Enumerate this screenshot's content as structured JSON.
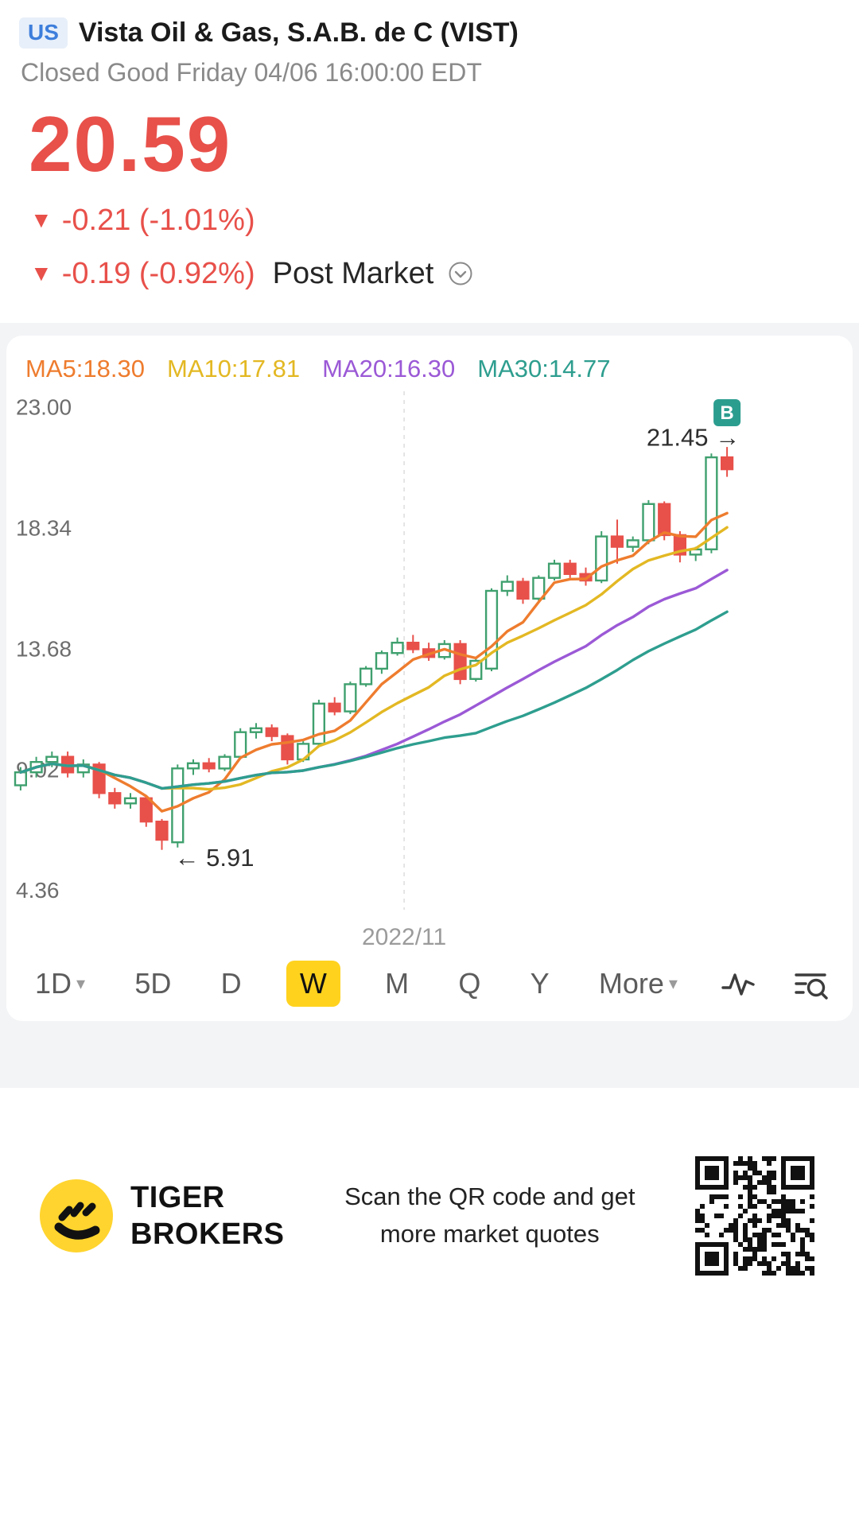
{
  "header": {
    "market_badge": "US",
    "title": "Vista Oil & Gas, S.A.B. de C (VIST)",
    "status": "Closed Good Friday 04/06 16:00:00 EDT",
    "price": "20.59",
    "price_color": "#e8504a",
    "change": {
      "arrow": "▼",
      "text": "-0.21 (-1.01%)"
    },
    "post_market": {
      "arrow": "▼",
      "text": "-0.19 (-0.92%)",
      "label": "Post Market"
    }
  },
  "chart": {
    "ma_labels": [
      {
        "text": "MA5:18.30",
        "color": "#ee7c2e"
      },
      {
        "text": "MA10:17.81",
        "color": "#e3b823"
      },
      {
        "text": "MA20:16.30",
        "color": "#9b59d6"
      },
      {
        "text": "MA30:14.77",
        "color": "#2e9e8f"
      }
    ],
    "periods": [
      {
        "label": "1D",
        "caret": true
      },
      {
        "label": "5D"
      },
      {
        "label": "D"
      },
      {
        "label": "W",
        "selected": true
      },
      {
        "label": "M"
      },
      {
        "label": "Q"
      },
      {
        "label": "Y"
      },
      {
        "label": "More",
        "caret": true
      }
    ],
    "selected_color": "#ffd21e"
  },
  "chart_data": {
    "type": "candlestick",
    "timeframe": "W",
    "ylim": [
      3.6,
      23.6
    ],
    "y_ticks": [
      "23.00",
      "18.34",
      "13.68",
      "9.02",
      "4.36"
    ],
    "x_axis_label": "2022/11",
    "x_axis_label_frac": 0.47,
    "up_color": "#3fa06e",
    "down_color": "#e8504a",
    "moving_averages": [
      {
        "name": "MA5",
        "period": 5,
        "value": 18.3,
        "color": "#ee7c2e"
      },
      {
        "name": "MA10",
        "period": 10,
        "value": 17.81,
        "color": "#e3b823"
      },
      {
        "name": "MA20",
        "period": 20,
        "value": 16.3,
        "color": "#9b59d6"
      },
      {
        "name": "MA30",
        "period": 30,
        "value": 14.77,
        "color": "#2e9e8f"
      }
    ],
    "annotations": [
      {
        "text": "5.91",
        "arrow": "left",
        "candle_index": 9,
        "price": 5.6
      },
      {
        "text": "21.45",
        "arrow": "right",
        "candle_index": 45,
        "price": 21.8
      }
    ],
    "buy_marker": {
      "label": "B",
      "color": "#2b9d8f"
    },
    "candles": [
      [
        8.4,
        9.1,
        8.2,
        8.9
      ],
      [
        8.9,
        9.5,
        8.7,
        9.3
      ],
      [
        9.3,
        9.7,
        9.1,
        9.5
      ],
      [
        9.5,
        9.7,
        8.7,
        8.9
      ],
      [
        8.9,
        9.4,
        8.7,
        9.2
      ],
      [
        9.2,
        9.3,
        7.9,
        8.1
      ],
      [
        8.1,
        8.3,
        7.5,
        7.7
      ],
      [
        7.7,
        8.1,
        7.5,
        7.9
      ],
      [
        7.9,
        8.0,
        6.8,
        7.0
      ],
      [
        7.0,
        7.1,
        5.91,
        6.3
      ],
      [
        6.2,
        9.2,
        6.0,
        9.05
      ],
      [
        9.05,
        9.4,
        8.8,
        9.25
      ],
      [
        9.25,
        9.45,
        8.9,
        9.05
      ],
      [
        9.05,
        9.6,
        8.95,
        9.5
      ],
      [
        9.5,
        10.6,
        9.4,
        10.45
      ],
      [
        10.45,
        10.8,
        10.2,
        10.6
      ],
      [
        10.6,
        10.75,
        10.1,
        10.3
      ],
      [
        10.3,
        10.4,
        9.2,
        9.4
      ],
      [
        9.4,
        10.1,
        9.3,
        10.0
      ],
      [
        10.0,
        11.7,
        9.9,
        11.55
      ],
      [
        11.55,
        11.8,
        11.1,
        11.25
      ],
      [
        11.25,
        12.4,
        11.15,
        12.3
      ],
      [
        12.3,
        13.0,
        12.2,
        12.9
      ],
      [
        12.9,
        13.6,
        12.7,
        13.5
      ],
      [
        13.5,
        14.1,
        13.4,
        13.9
      ],
      [
        13.9,
        14.2,
        13.5,
        13.65
      ],
      [
        13.65,
        13.9,
        13.2,
        13.35
      ],
      [
        13.35,
        14.0,
        13.25,
        13.85
      ],
      [
        13.85,
        14.0,
        12.3,
        12.5
      ],
      [
        12.5,
        13.3,
        12.4,
        13.2
      ],
      [
        12.9,
        16.0,
        12.8,
        15.9
      ],
      [
        15.9,
        16.5,
        15.7,
        16.25
      ],
      [
        16.25,
        16.4,
        15.4,
        15.6
      ],
      [
        15.6,
        16.5,
        15.5,
        16.4
      ],
      [
        16.4,
        17.1,
        16.3,
        16.95
      ],
      [
        16.95,
        17.1,
        16.4,
        16.55
      ],
      [
        16.55,
        16.8,
        16.1,
        16.3
      ],
      [
        16.3,
        18.2,
        16.2,
        18.0
      ],
      [
        18.0,
        18.65,
        16.95,
        17.6
      ],
      [
        17.6,
        18.0,
        17.4,
        17.85
      ],
      [
        17.85,
        19.4,
        17.7,
        19.25
      ],
      [
        19.25,
        19.35,
        17.85,
        18.05
      ],
      [
        18.05,
        18.2,
        17.0,
        17.3
      ],
      [
        17.3,
        17.6,
        17.05,
        17.5
      ],
      [
        17.5,
        21.2,
        17.35,
        21.05
      ],
      [
        21.05,
        21.45,
        20.3,
        20.59
      ]
    ]
  },
  "footer": {
    "brand_line1": "TIGER",
    "brand_line2": "BROKERS",
    "scan_text": "Scan the QR code and get more market quotes"
  }
}
